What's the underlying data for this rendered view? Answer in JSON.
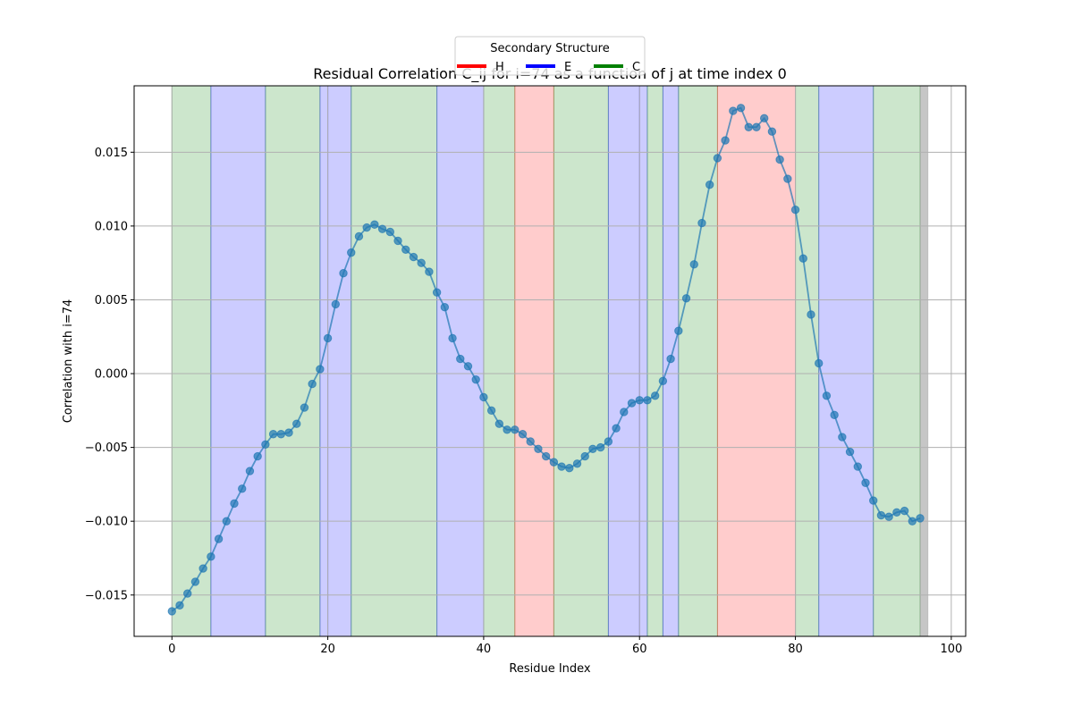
{
  "chart_data": {
    "type": "line",
    "title": "Residual Correlation C_ij for i=74 as a function of j at time index 0",
    "xlabel": "Residue Index",
    "ylabel": "Correlation with i=74",
    "xlim": [
      -4.85,
      101.85
    ],
    "ylim": [
      -0.0178,
      0.0195
    ],
    "xticks": [
      0,
      20,
      40,
      60,
      80,
      100
    ],
    "yticks": [
      -0.015,
      -0.01,
      -0.005,
      0.0,
      0.005,
      0.01,
      0.015
    ],
    "xtick_labels": [
      "0",
      "20",
      "40",
      "60",
      "80",
      "100"
    ],
    "ytick_labels": [
      "−0.015",
      "−0.010",
      "−0.005",
      "0.000",
      "0.005",
      "0.010",
      "0.015"
    ],
    "grid": true,
    "x": [
      0,
      1,
      2,
      3,
      4,
      5,
      6,
      7,
      8,
      9,
      10,
      11,
      12,
      13,
      14,
      15,
      16,
      17,
      18,
      19,
      20,
      21,
      22,
      23,
      24,
      25,
      26,
      27,
      28,
      29,
      30,
      31,
      32,
      33,
      34,
      35,
      36,
      37,
      38,
      39,
      40,
      41,
      42,
      43,
      44,
      45,
      46,
      47,
      48,
      49,
      50,
      51,
      52,
      53,
      54,
      55,
      56,
      57,
      58,
      59,
      60,
      61,
      62,
      63,
      64,
      65,
      66,
      67,
      68,
      69,
      70,
      71,
      72,
      73,
      74,
      75,
      76,
      77,
      78,
      79,
      80,
      81,
      82,
      83,
      84,
      85,
      86,
      87,
      88,
      89,
      90,
      91,
      92,
      93,
      94,
      95,
      96
    ],
    "series": [
      {
        "color": "#1f77b4",
        "values": [
          -0.0161,
          -0.0157,
          -0.0149,
          -0.0141,
          -0.0132,
          -0.0124,
          -0.0112,
          -0.01,
          -0.0088,
          -0.0078,
          -0.0066,
          -0.0056,
          -0.0048,
          -0.0041,
          -0.0041,
          -0.004,
          -0.0034,
          -0.0023,
          -0.0007,
          0.0003,
          0.0024,
          0.0047,
          0.0068,
          0.0082,
          0.0093,
          0.0099,
          0.0101,
          0.0098,
          0.0096,
          0.009,
          0.0084,
          0.0079,
          0.0075,
          0.0069,
          0.0055,
          0.0045,
          0.0024,
          0.001,
          0.0005,
          -0.0004,
          -0.0016,
          -0.0025,
          -0.0034,
          -0.0038,
          -0.0038,
          -0.0041,
          -0.0046,
          -0.0051,
          -0.0056,
          -0.006,
          -0.0063,
          -0.0064,
          -0.0061,
          -0.0056,
          -0.0051,
          -0.005,
          -0.0046,
          -0.0037,
          -0.0026,
          -0.002,
          -0.0018,
          -0.0018,
          -0.0015,
          -0.0005,
          0.001,
          0.0029,
          0.0051,
          0.0074,
          0.0102,
          0.0128,
          0.0146,
          0.0158,
          0.0178,
          0.018,
          0.0167,
          0.0167,
          0.0173,
          0.0164,
          0.0145,
          0.0132,
          0.0111,
          0.0078,
          0.004,
          0.0007,
          -0.0015,
          -0.0028,
          -0.0043,
          -0.0053,
          -0.0063,
          -0.0074,
          -0.0086,
          -0.0096,
          -0.0097,
          -0.0094,
          -0.0093,
          -0.01,
          -0.0098
        ]
      }
    ],
    "regions": [
      {
        "start": 0,
        "end": 5,
        "type": "C"
      },
      {
        "start": 5,
        "end": 12,
        "type": "E"
      },
      {
        "start": 12,
        "end": 19,
        "type": "C"
      },
      {
        "start": 19,
        "end": 20,
        "type": "E"
      },
      {
        "start": 20,
        "end": 23,
        "type": "E"
      },
      {
        "start": 23,
        "end": 34,
        "type": "C"
      },
      {
        "start": 34,
        "end": 40,
        "type": "E"
      },
      {
        "start": 40,
        "end": 44,
        "type": "C"
      },
      {
        "start": 44,
        "end": 49,
        "type": "H"
      },
      {
        "start": 49,
        "end": 56,
        "type": "C"
      },
      {
        "start": 56,
        "end": 60,
        "type": "E"
      },
      {
        "start": 60,
        "end": 61,
        "type": "E"
      },
      {
        "start": 61,
        "end": 63,
        "type": "C"
      },
      {
        "start": 63,
        "end": 65,
        "type": "E"
      },
      {
        "start": 65,
        "end": 70,
        "type": "C"
      },
      {
        "start": 70,
        "end": 80,
        "type": "H"
      },
      {
        "start": 80,
        "end": 83,
        "type": "C"
      },
      {
        "start": 83,
        "end": 90,
        "type": "E"
      },
      {
        "start": 90,
        "end": 96,
        "type": "C"
      },
      {
        "start": 96,
        "end": 97,
        "type": "gray"
      }
    ],
    "region_colors": {
      "H": "#ff0000",
      "E": "#0000ff",
      "C": "#008000",
      "gray": "#808080"
    },
    "legend": {
      "title": "Secondary Structure",
      "placement": "top-center",
      "entries": [
        {
          "label": "H",
          "color": "#ff0000"
        },
        {
          "label": "E",
          "color": "#0000ff"
        },
        {
          "label": "C",
          "color": "#008000"
        }
      ]
    }
  }
}
